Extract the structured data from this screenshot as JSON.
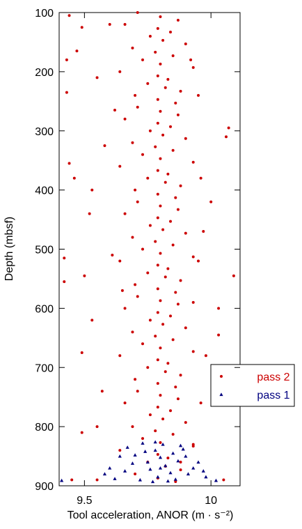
{
  "chart_data": {
    "type": "scatter",
    "xlabel": "Tool acceleration, ANOR (m · s⁻²)",
    "ylabel": "Depth (mbsf)",
    "xlim": [
      9.4,
      10.115
    ],
    "ylim": [
      100,
      900
    ],
    "y_inverted": true,
    "xticks": [
      9.5,
      10
    ],
    "yticks": [
      100,
      200,
      300,
      400,
      500,
      600,
      700,
      800,
      900
    ],
    "legend_position": "right",
    "series": [
      {
        "name": "pass 2",
        "color": "#cc0000",
        "marker": "circle",
        "x": [
          9.44,
          9.43,
          9.47,
          9.49,
          9.43,
          9.44,
          9.46,
          9.42,
          9.42,
          9.5,
          9.53,
          9.49,
          9.49,
          9.45,
          10.07,
          10.06,
          10.09,
          10.03,
          10.03,
          9.95,
          9.98,
          9.55,
          9.55,
          10.05,
          9.6,
          9.55,
          9.62,
          9.58,
          9.52,
          9.53,
          9.61,
          9.65,
          9.57,
          9.95,
          9.92,
          9.96,
          10.0,
          9.97,
          9.93,
          9.96,
          9.93,
          9.88,
          9.71,
          9.8,
          9.87,
          9.66,
          9.79,
          9.84,
          9.76,
          9.81,
          9.9,
          9.69,
          9.78,
          9.85,
          9.73,
          9.8,
          9.93,
          9.64,
          9.79,
          9.83,
          9.75,
          9.82,
          9.88,
          9.7,
          9.79,
          9.86,
          9.71,
          9.8,
          9.87,
          9.66,
          9.79,
          9.84,
          9.76,
          9.81,
          9.9,
          9.69,
          9.78,
          9.85,
          9.73,
          9.8,
          9.93,
          9.64,
          9.79,
          9.83,
          9.75,
          9.82,
          9.88,
          9.7,
          9.79,
          9.86,
          9.71,
          9.8,
          9.87,
          9.66,
          9.79,
          9.84,
          9.76,
          9.81,
          9.9,
          9.69,
          9.78,
          9.85,
          9.73,
          9.8,
          9.93,
          9.64,
          9.79,
          9.83,
          9.75,
          9.82,
          9.88,
          9.7,
          9.79,
          9.86,
          9.71,
          9.8,
          9.87,
          9.66,
          9.79,
          9.84,
          9.76,
          9.81,
          9.9,
          9.69,
          9.78,
          9.85,
          9.73,
          9.8,
          9.93,
          9.64,
          9.79,
          9.83,
          9.75,
          9.82,
          9.88,
          9.7,
          9.79,
          9.86,
          9.71,
          9.8,
          9.87,
          9.66,
          9.79,
          9.84,
          9.76,
          9.81,
          9.9,
          9.69,
          9.78,
          9.85,
          9.73,
          9.8,
          9.93,
          9.64,
          9.79,
          9.83,
          9.75,
          9.82,
          9.88,
          9.7,
          9.79,
          9.86
        ],
        "y": [
          105,
          180,
          165,
          125,
          235,
          355,
          380,
          515,
          555,
          545,
          400,
          675,
          810,
          890,
          295,
          310,
          545,
          600,
          645,
          520,
          680,
          800,
          890,
          890,
          120,
          210,
          265,
          325,
          440,
          620,
          510,
          570,
          740,
          240,
          180,
          380,
          420,
          470,
          590,
          760,
          830,
          860,
          100,
          107,
          113,
          120,
          127,
          133,
          140,
          147,
          153,
          160,
          167,
          173,
          180,
          187,
          193,
          200,
          207,
          213,
          220,
          227,
          233,
          240,
          247,
          253,
          260,
          267,
          273,
          280,
          287,
          293,
          300,
          307,
          313,
          320,
          327,
          333,
          340,
          347,
          353,
          360,
          367,
          373,
          380,
          387,
          393,
          400,
          407,
          413,
          420,
          427,
          433,
          440,
          447,
          453,
          460,
          467,
          473,
          480,
          487,
          493,
          500,
          507,
          513,
          520,
          527,
          533,
          540,
          547,
          553,
          560,
          567,
          573,
          580,
          587,
          593,
          600,
          607,
          613,
          620,
          627,
          633,
          640,
          647,
          653,
          660,
          667,
          673,
          680,
          687,
          693,
          700,
          707,
          713,
          720,
          727,
          733,
          740,
          747,
          753,
          760,
          767,
          773,
          780,
          787,
          793,
          800,
          807,
          813,
          820,
          827,
          833,
          840,
          847,
          853,
          860,
          867,
          873,
          880,
          887,
          893
        ]
      },
      {
        "name": "pass 1",
        "color": "#000080",
        "marker": "triangle",
        "x": [
          9.67,
          9.7,
          9.73,
          9.75,
          9.76,
          9.78,
          9.79,
          9.8,
          9.81,
          9.82,
          9.84,
          9.85,
          9.87,
          9.89,
          9.91,
          9.93,
          9.72,
          9.77,
          9.83,
          9.86,
          9.66,
          9.69,
          9.74,
          9.8,
          9.78,
          9.88,
          9.9,
          9.62,
          9.58,
          9.41,
          9.98,
          10.02,
          9.95,
          9.64,
          9.97,
          9.6
        ],
        "y": [
          835,
          848,
          828,
          860,
          872,
          840,
          885,
          852,
          830,
          866,
          878,
          845,
          858,
          838,
          880,
          870,
          890,
          893,
          892,
          889,
          875,
          862,
          842,
          870,
          826,
          832,
          850,
          888,
          880,
          891,
          885,
          891,
          860,
          850,
          875,
          870
        ]
      }
    ]
  }
}
